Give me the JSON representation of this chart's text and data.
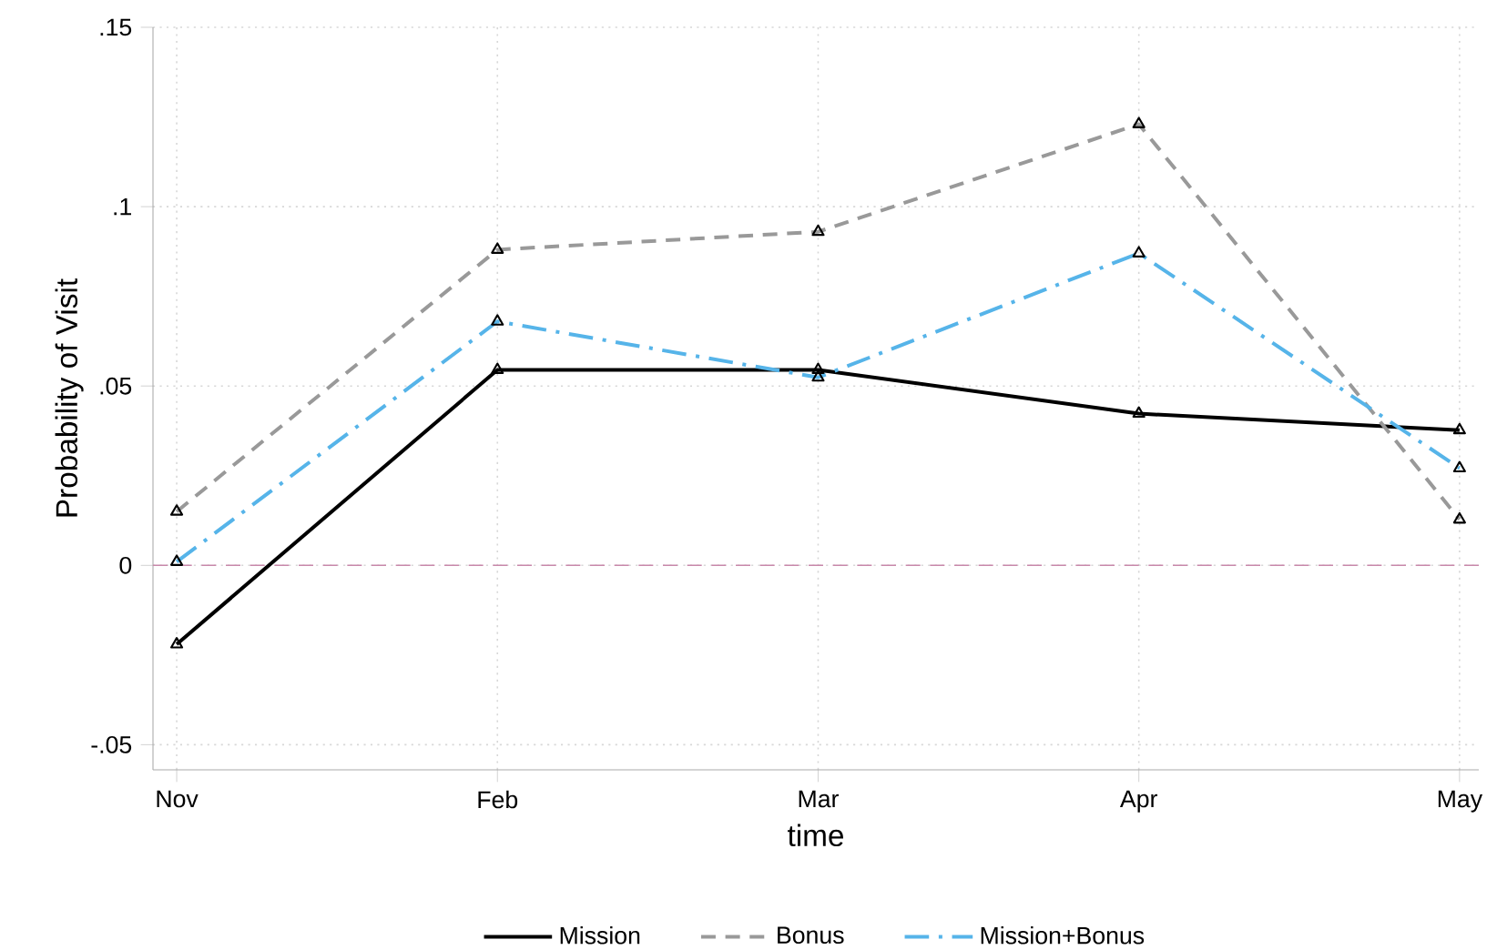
{
  "chart_data": {
    "type": "line",
    "xlabel": "time",
    "ylabel": "Probability of Visit",
    "categories": [
      "Nov",
      "Feb",
      "Mar",
      "Apr",
      "May"
    ],
    "ylim": [
      -0.057,
      0.15
    ],
    "yticks": [
      {
        "value": -0.05,
        "label": "-.05"
      },
      0,
      {
        "value": 0.05,
        "label": ".05"
      },
      {
        "value": 0.1,
        "label": ".1"
      },
      {
        "value": 0.15,
        "label": ".15"
      }
    ],
    "series": [
      {
        "name": "Mission",
        "color": "#000000",
        "line_style": "solid",
        "values": [
          -0.022,
          0.0545,
          0.0545,
          0.0423,
          0.0377
        ]
      },
      {
        "name": "Bonus",
        "color": "#999999",
        "line_style": "dashed",
        "values": [
          0.015,
          0.088,
          0.093,
          0.123,
          0.0128
        ]
      },
      {
        "name": "Mission+Bonus",
        "color": "#56b4e9",
        "line_style": "dashdot",
        "values": [
          0.001,
          0.068,
          0.0524,
          0.087,
          0.0271
        ]
      }
    ],
    "ref_lines": [
      {
        "axis": "y",
        "value": 0,
        "color": "#c888aa",
        "line_style": "dashed"
      }
    ],
    "grid": true,
    "legend": "bottom",
    "marker": "triangle"
  }
}
